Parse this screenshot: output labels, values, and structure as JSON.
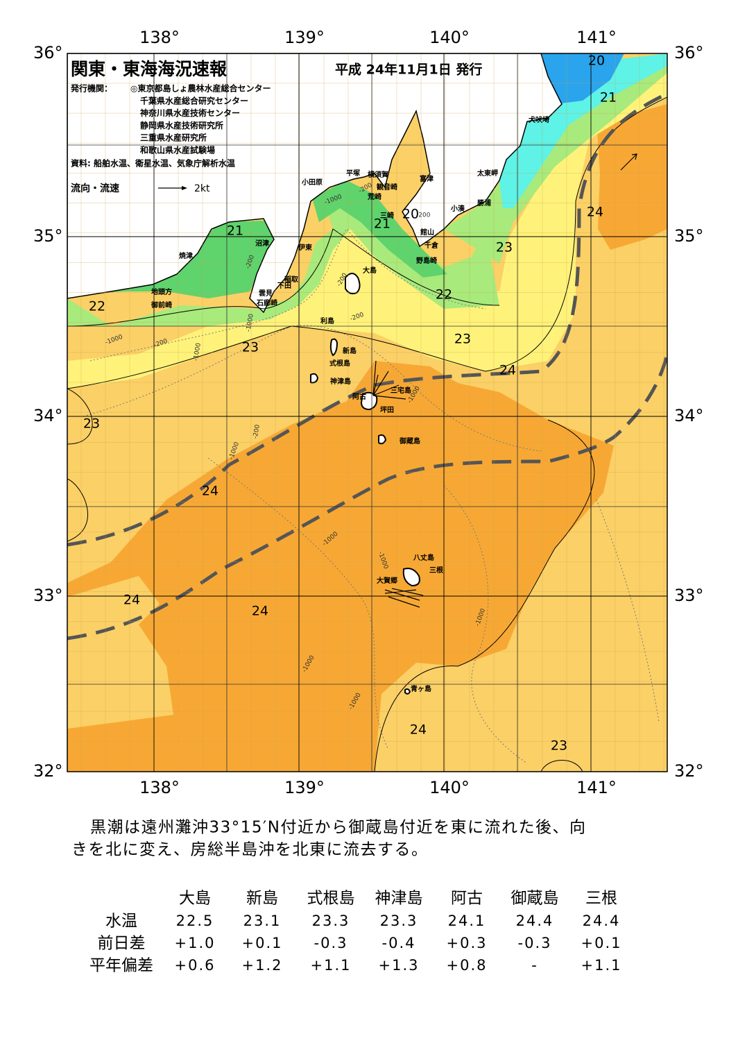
{
  "header": {
    "title": "関東・東海海況速報",
    "date": "平成 24年11月1日 発行",
    "issuer_label": "発行機関：",
    "issuers": [
      "◎東京都島しょ農林水産総合センター",
      "千葉県水産総合研究センター",
      "神奈川県水産技術センター",
      "静岡県水産技術研究所",
      "三重県水産研究所",
      "和歌山県水産試験場"
    ],
    "source": "資料: 船舶水温、衛星水温、気象庁解析水温"
  },
  "legend": {
    "flow_label": "流向・流速",
    "flow_scale": "2kt"
  },
  "axes": {
    "lon_labels": [
      "138°",
      "139°",
      "140°",
      "141°"
    ],
    "lat_labels": [
      "36°",
      "35°",
      "34°",
      "33°",
      "32°"
    ]
  },
  "place_names": [
    "犬吠埼",
    "太東岬",
    "勝浦",
    "小湊",
    "富津",
    "横須賀",
    "観音崎",
    "平塚",
    "小田原",
    "荒崎",
    "三崎",
    "館山",
    "千倉",
    "野島崎",
    "大島",
    "沼津",
    "焼津",
    "伊東",
    "稲取",
    "下田",
    "雲見",
    "石廊崎",
    "地頭方",
    "御前崎",
    "利島",
    "新島",
    "式根島",
    "神津島",
    "阿古",
    "三宅島",
    "坪田",
    "御蔵島",
    "八丈島",
    "三根",
    "大賀郷",
    "青ヶ島"
  ],
  "contour_labels": [
    20,
    21,
    20,
    21,
    21,
    22,
    22,
    23,
    24,
    23,
    23,
    24,
    23,
    24,
    24,
    24,
    24,
    23
  ],
  "depth_labels": [
    "-200",
    "-1000",
    "-200",
    "-200",
    "-200",
    "-1000",
    "-200",
    "-1000",
    "-1000",
    "-200",
    "-1000",
    "-1000",
    "-1000",
    "-1000",
    "-1000",
    "-1000",
    "-200",
    "-1000"
  ],
  "summary": [
    "黒潮は遠州灘沖33°15′N付近から御蔵島付近を東に流れた後、向",
    "きを北に変え、房総半島沖を北東に流去する。"
  ],
  "table": {
    "columns": [
      "大島",
      "新島",
      "式根島",
      "神津島",
      "阿古",
      "御蔵島",
      "三根"
    ],
    "rows": [
      {
        "label": "水温",
        "cells": [
          "22.5",
          "23.1",
          "23.3",
          "23.3",
          "24.1",
          "24.4",
          "24.4"
        ]
      },
      {
        "label": "前日差",
        "cells": [
          "+1.0",
          "+0.1",
          "-0.3",
          "-0.4",
          "+0.3",
          "-0.3",
          "+0.1"
        ]
      },
      {
        "label": "平年偏差",
        "cells": [
          "+0.6",
          "+1.2",
          "+1.1",
          "+1.3",
          "+0.8",
          "-",
          "+1.1"
        ]
      }
    ]
  }
}
